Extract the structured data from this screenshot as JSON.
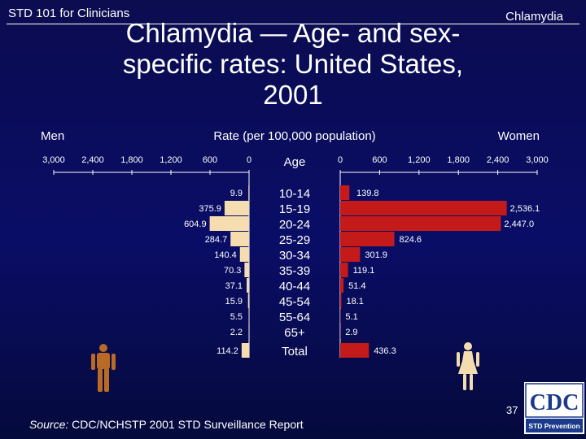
{
  "header": {
    "left": "STD 101 for Clinicians",
    "right": "Chlamydia"
  },
  "title_line1": "Chlamydia — Age- and sex-",
  "title_line2": "specific rates: United States,",
  "title_line3": "2001",
  "chart_data": {
    "type": "bar",
    "orientation": "horizontal-butterfly",
    "title": "Chlamydia — Age- and sex-specific rates: United States, 2001",
    "xlabel": "Rate (per 100,000 population)",
    "left_group_label": "Men",
    "right_group_label": "Women",
    "category_axis_label": "Age",
    "categories": [
      "10-14",
      "15-19",
      "20-24",
      "25-29",
      "30-34",
      "35-39",
      "40-44",
      "45-54",
      "55-64",
      "65+",
      "Total"
    ],
    "xlim": [
      0,
      3000
    ],
    "men_ticks": [
      "3,000",
      "2,400",
      "1,800",
      "1,200",
      "600",
      "0"
    ],
    "women_ticks": [
      "0",
      "600",
      "1,200",
      "1,800",
      "2,400",
      "3,000"
    ],
    "series": [
      {
        "name": "Men",
        "side": "left",
        "color": "#f6ddb0",
        "values": [
          9.9,
          375.9,
          604.9,
          284.7,
          140.4,
          70.3,
          37.1,
          15.9,
          5.5,
          2.2,
          114.2
        ],
        "labels": [
          "9.9",
          "375.9",
          "604.9",
          "284.7",
          "140.4",
          "70.3",
          "37.1",
          "15.9",
          "5.5",
          "2.2",
          "114.2"
        ]
      },
      {
        "name": "Women",
        "side": "right",
        "color": "#c41a1a",
        "values": [
          139.8,
          2536.1,
          2447.0,
          824.6,
          301.9,
          119.1,
          51.4,
          18.1,
          5.1,
          2.9,
          436.3
        ],
        "labels": [
          "139.8",
          "2,536.1",
          "2,447.0",
          "824.6",
          "301.9",
          "119.1",
          "51.4",
          "18.1",
          "5.1",
          "2.9",
          "436.3"
        ]
      }
    ]
  },
  "icons": {
    "man": "man-figure-icon",
    "woman": "woman-figure-icon",
    "logo": "cdc-logo"
  },
  "logo": {
    "text": "CDC",
    "subtext": "STD Prevention"
  },
  "page_number": "37",
  "source": {
    "label": "Source:",
    "text": " CDC/NCHSTP 2001 STD Surveillance Report"
  },
  "colors": {
    "background": "#0a0d66",
    "men_bar": "#f6ddb0",
    "women_bar": "#c41a1a",
    "text": "#ffffff"
  }
}
